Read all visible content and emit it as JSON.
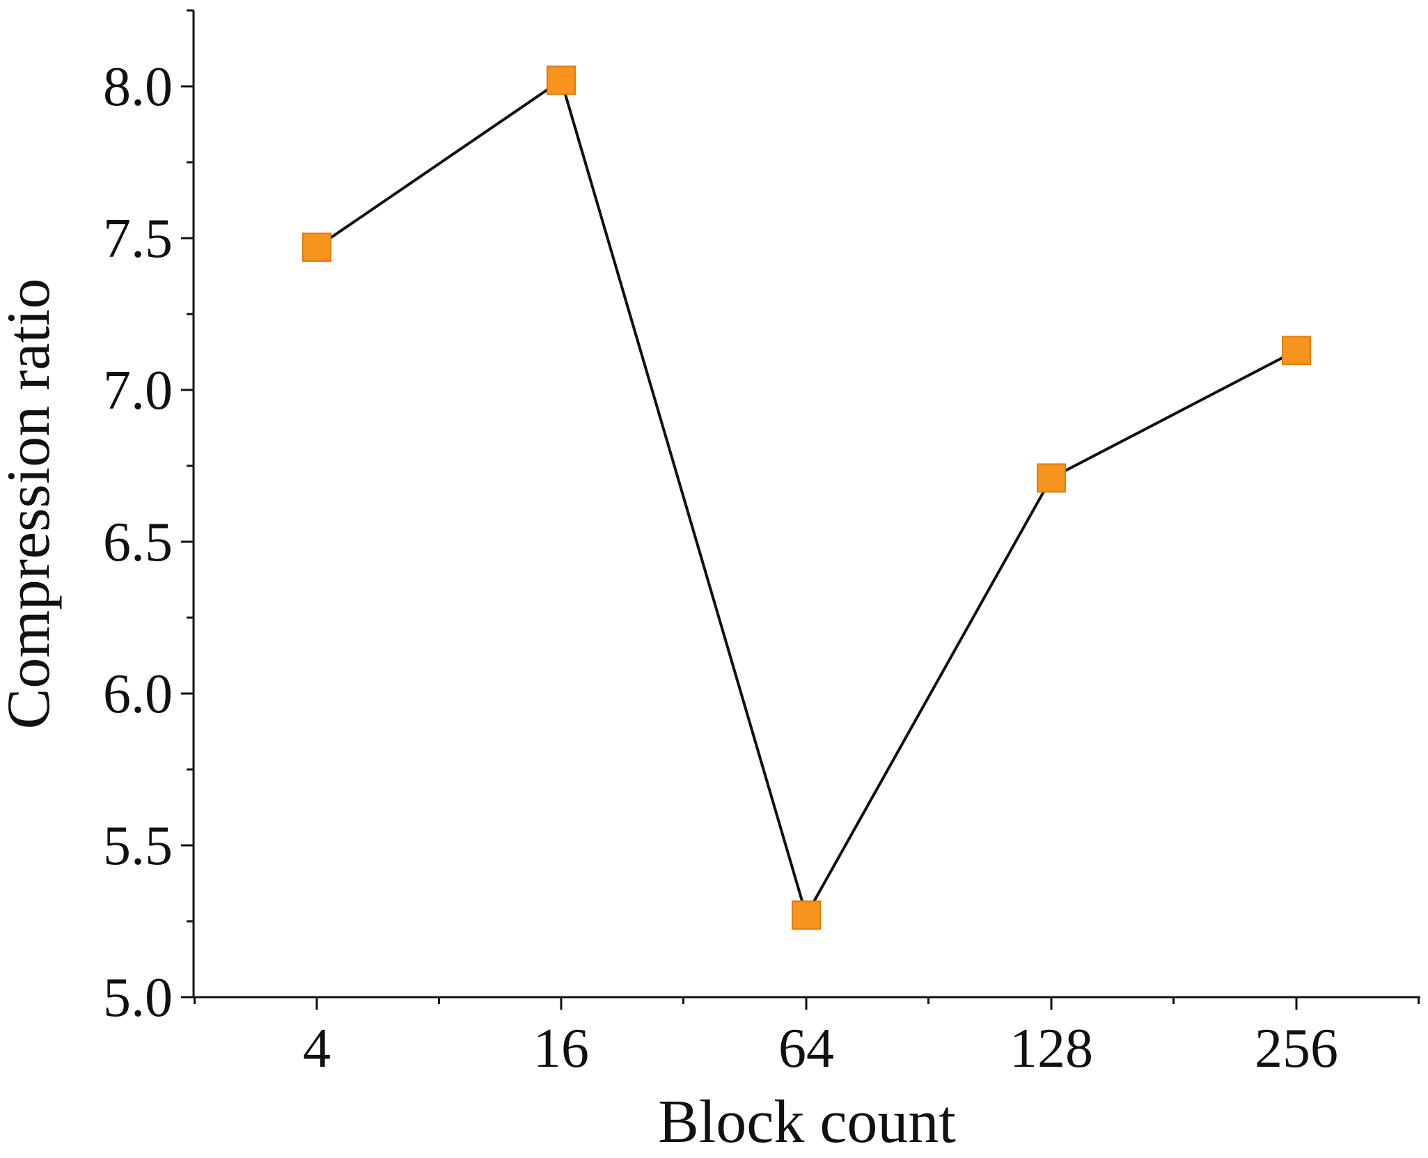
{
  "chart_data": {
    "type": "line",
    "categories": [
      "4",
      "16",
      "64",
      "128",
      "256"
    ],
    "series": [
      {
        "values": [
          7.47,
          8.02,
          5.27,
          6.71,
          7.13
        ]
      }
    ],
    "xlabel": "Block count",
    "ylabel": "Compression ratio",
    "ylim": [
      5.0,
      8.25
    ],
    "yticks": [
      5.0,
      5.5,
      6.0,
      6.5,
      7.0,
      7.5,
      8.0
    ],
    "ytick_labels": [
      "5.0",
      "5.5",
      "6.0",
      "6.5",
      "7.0",
      "7.5",
      "8.0"
    ],
    "grid": false,
    "legend": "none",
    "colors": {
      "line": "#111111",
      "marker": "#f7941d",
      "marker_edge": "#e07b10"
    },
    "marker": "square"
  }
}
